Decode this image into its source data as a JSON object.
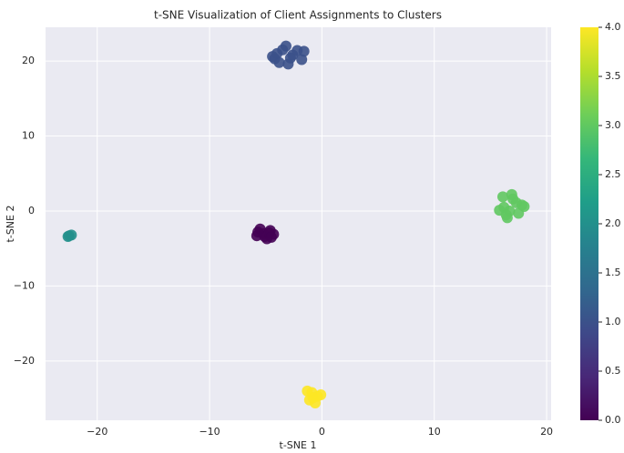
{
  "chart_data": {
    "type": "scatter",
    "title": "t-SNE Visualization of Client Assignments to Clusters",
    "x_label": "t-SNE 1",
    "y_label": "t-SNE 2",
    "x": [
      -5.2,
      -4.6,
      -5.8,
      -4.9,
      -5.5,
      -4.3,
      -5.1,
      -4.7,
      -5.7,
      -4.5,
      -4.2,
      -3.5,
      -2.6,
      -3.0,
      -4.0,
      -1.8,
      -3.8,
      -2.2,
      -3.2,
      -4.4,
      -2.8,
      -1.6,
      -22.5,
      -22.3,
      -22.6,
      16.2,
      17.0,
      17.8,
      16.5,
      15.8,
      16.9,
      17.5,
      16.1,
      18.0,
      16.7,
      17.3,
      16.4,
      -0.9,
      -0.4,
      -1.1,
      -0.6,
      -0.1,
      -1.3,
      -0.8
    ],
    "y": [
      -3.0,
      -2.6,
      -3.3,
      -3.7,
      -2.4,
      -3.1,
      -3.4,
      -2.9,
      -2.8,
      -3.5,
      20.3,
      21.5,
      20.8,
      19.6,
      21.0,
      20.2,
      19.8,
      21.4,
      22.0,
      20.6,
      20.4,
      21.3,
      -3.3,
      -3.2,
      -3.4,
      0.5,
      1.6,
      0.8,
      -0.9,
      0.1,
      2.2,
      -0.3,
      1.9,
      0.6,
      0.0,
      1.1,
      -0.5,
      -24.2,
      -24.7,
      -25.2,
      -25.6,
      -24.5,
      -24.0,
      -24.9
    ],
    "c": [
      0,
      0,
      0,
      0,
      0,
      0,
      0,
      0,
      0,
      0,
      1,
      1,
      1,
      1,
      1,
      1,
      1,
      1,
      1,
      1,
      1,
      1,
      2,
      2,
      2,
      3,
      3,
      3,
      3,
      3,
      3,
      3,
      3,
      3,
      3,
      3,
      3,
      4,
      4,
      4,
      4,
      4,
      4,
      4
    ],
    "colormap": "viridis",
    "xlim": [
      -24.6,
      20.4
    ],
    "ylim": [
      -27.9,
      24.5
    ],
    "xticks": [
      {
        "value": -20,
        "label": "−20"
      },
      {
        "value": -10,
        "label": "−10"
      },
      0,
      10,
      20
    ],
    "yticks": [
      {
        "value": -20,
        "label": "−20"
      },
      {
        "value": -10,
        "label": "−10"
      },
      0,
      10,
      20
    ],
    "clim": [
      0,
      4
    ],
    "cticks": [
      {
        "value": 0,
        "label": "0.0"
      },
      0.5,
      {
        "value": 1,
        "label": "1.0"
      },
      1.5,
      {
        "value": 2,
        "label": "2.0"
      },
      2.5,
      {
        "value": 3,
        "label": "3.0"
      },
      3.5,
      {
        "value": 4,
        "label": "4.0"
      }
    ],
    "grid": true
  }
}
